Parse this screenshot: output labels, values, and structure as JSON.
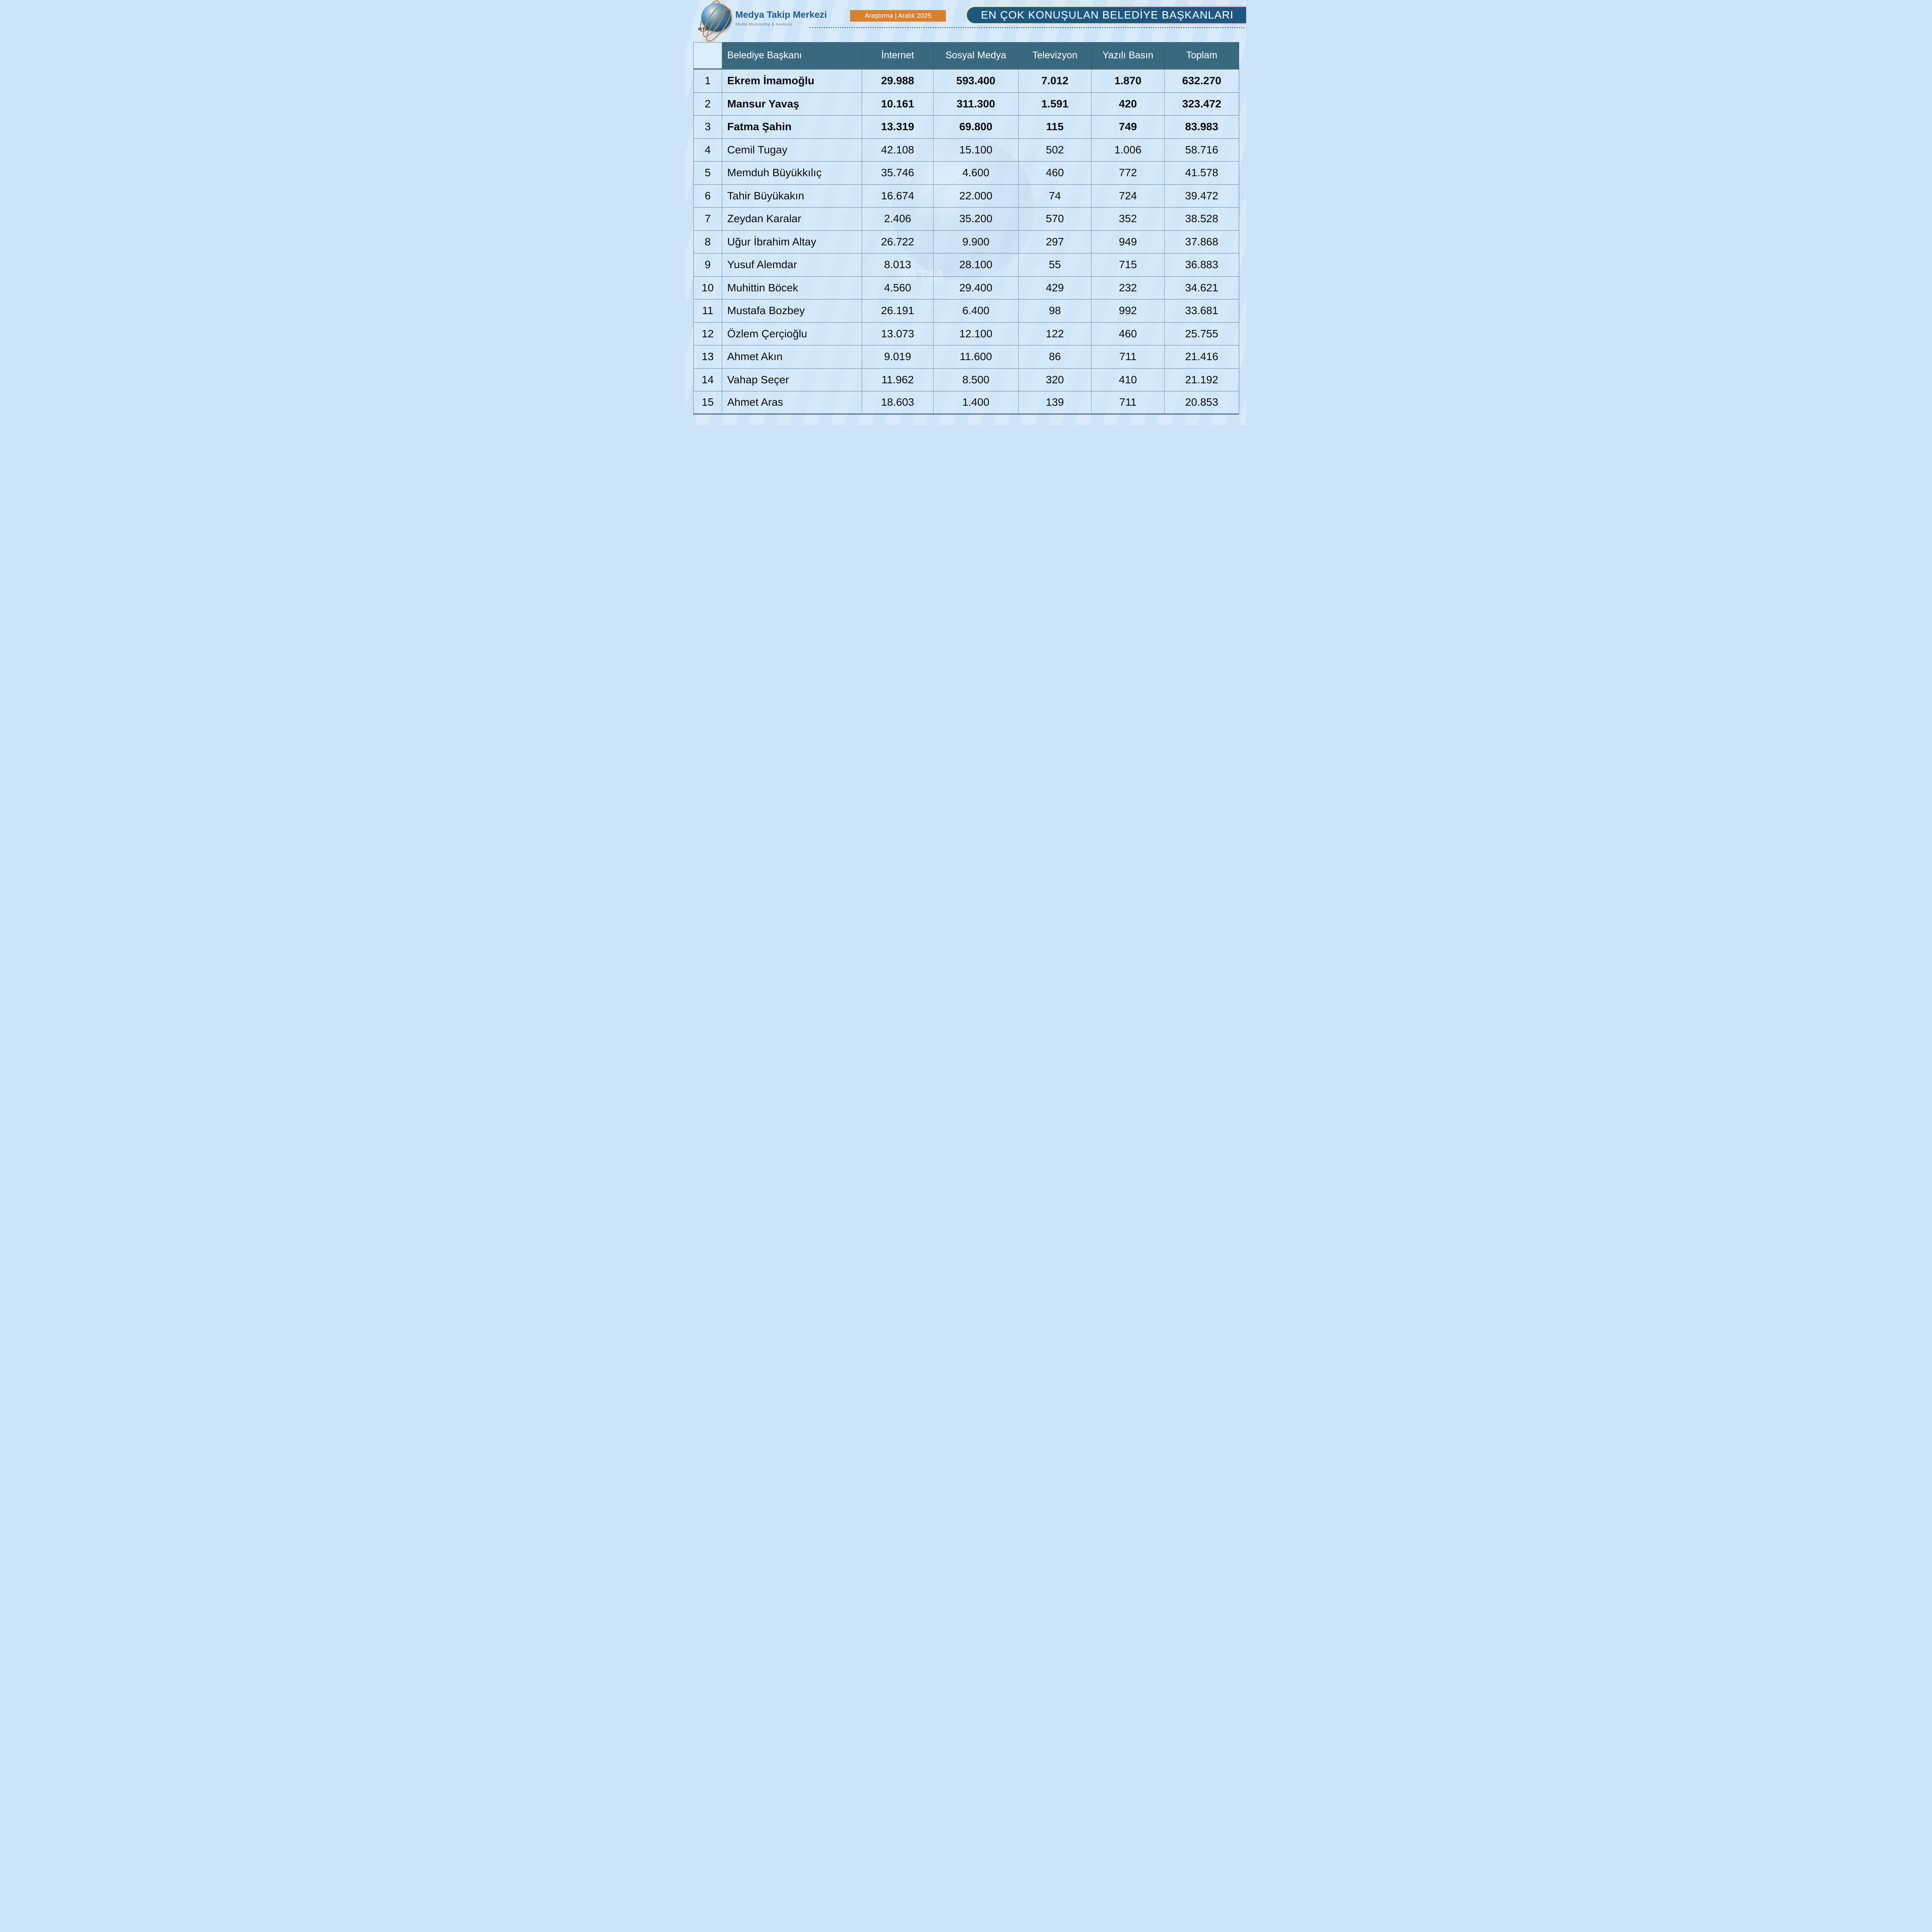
{
  "brand": {
    "name": "Medya Takip Merkezi",
    "tagline": "Media Monitoring & Analysis",
    "logo_text": "MTM",
    "watermark_text": "MTM"
  },
  "badge": {
    "label": "Araştırma | Aralık 2025"
  },
  "title": "EN ÇOK KONUŞULAN BELEDİYE BAŞKANLARI",
  "colors": {
    "page_bg": "#cde4f8",
    "stripe": "#d9ebfb",
    "header_teal": "#39697f",
    "title_bar_blue": "#1e5880",
    "badge_orange": "#d9802e",
    "cell_blue": "#d3e8fa",
    "border_slate": "#5c7d98",
    "brand_blue": "#20598b",
    "title_border_yellow": "#f2ecae",
    "title_border_pink": "#f2aed2"
  },
  "chart_data": {
    "type": "table",
    "title": "EN ÇOK KONUŞULAN BELEDİYE BAŞKANLARI",
    "subtitle": "Araştırma | Aralık 2025",
    "number_format": "thousands separator '.'",
    "columns": [
      "",
      "Belediye Başkanı",
      "İnternet",
      "Sosyal Medya",
      "Televizyon",
      "Yazılı Basın",
      "Toplam"
    ],
    "rows": [
      {
        "rank": "1",
        "name": "Ekrem İmamoğlu",
        "internet": "29.988",
        "sosyal_medya": "593.400",
        "televizyon": "7.012",
        "yazili_basin": "1.870",
        "toplam": "632.270",
        "bold": true
      },
      {
        "rank": "2",
        "name": "Mansur Yavaş",
        "internet": "10.161",
        "sosyal_medya": "311.300",
        "televizyon": "1.591",
        "yazili_basin": "420",
        "toplam": "323.472",
        "bold": true
      },
      {
        "rank": "3",
        "name": "Fatma Şahin",
        "internet": "13.319",
        "sosyal_medya": "69.800",
        "televizyon": "115",
        "yazili_basin": "749",
        "toplam": "83.983",
        "bold": true
      },
      {
        "rank": "4",
        "name": "Cemil Tugay",
        "internet": "42.108",
        "sosyal_medya": "15.100",
        "televizyon": "502",
        "yazili_basin": "1.006",
        "toplam": "58.716",
        "bold": false
      },
      {
        "rank": "5",
        "name": "Memduh Büyükkılıç",
        "internet": "35.746",
        "sosyal_medya": "4.600",
        "televizyon": "460",
        "yazili_basin": "772",
        "toplam": "41.578",
        "bold": false
      },
      {
        "rank": "6",
        "name": "Tahir Büyükakın",
        "internet": "16.674",
        "sosyal_medya": "22.000",
        "televizyon": "74",
        "yazili_basin": "724",
        "toplam": "39.472",
        "bold": false
      },
      {
        "rank": "7",
        "name": "Zeydan Karalar",
        "internet": "2.406",
        "sosyal_medya": "35.200",
        "televizyon": "570",
        "yazili_basin": "352",
        "toplam": "38.528",
        "bold": false
      },
      {
        "rank": "8",
        "name": "Uğur İbrahim Altay",
        "internet": "26.722",
        "sosyal_medya": "9.900",
        "televizyon": "297",
        "yazili_basin": "949",
        "toplam": "37.868",
        "bold": false
      },
      {
        "rank": "9",
        "name": "Yusuf Alemdar",
        "internet": "8.013",
        "sosyal_medya": "28.100",
        "televizyon": "55",
        "yazili_basin": "715",
        "toplam": "36.883",
        "bold": false
      },
      {
        "rank": "10",
        "name": "Muhittin Böcek",
        "internet": "4.560",
        "sosyal_medya": "29.400",
        "televizyon": "429",
        "yazili_basin": "232",
        "toplam": "34.621",
        "bold": false
      },
      {
        "rank": "11",
        "name": "Mustafa Bozbey",
        "internet": "26.191",
        "sosyal_medya": "6.400",
        "televizyon": "98",
        "yazili_basin": "992",
        "toplam": "33.681",
        "bold": false
      },
      {
        "rank": "12",
        "name": "Özlem Çerçioğlu",
        "internet": "13.073",
        "sosyal_medya": "12.100",
        "televizyon": "122",
        "yazili_basin": "460",
        "toplam": "25.755",
        "bold": false
      },
      {
        "rank": "13",
        "name": "Ahmet Akın",
        "internet": "9.019",
        "sosyal_medya": "11.600",
        "televizyon": "86",
        "yazili_basin": "711",
        "toplam": "21.416",
        "bold": false
      },
      {
        "rank": "14",
        "name": "Vahap Seçer",
        "internet": "11.962",
        "sosyal_medya": "8.500",
        "televizyon": "320",
        "yazili_basin": "410",
        "toplam": "21.192",
        "bold": false
      },
      {
        "rank": "15",
        "name": "Ahmet Aras",
        "internet": "18.603",
        "sosyal_medya": "1.400",
        "televizyon": "139",
        "yazili_basin": "711",
        "toplam": "20.853",
        "bold": false
      }
    ]
  }
}
